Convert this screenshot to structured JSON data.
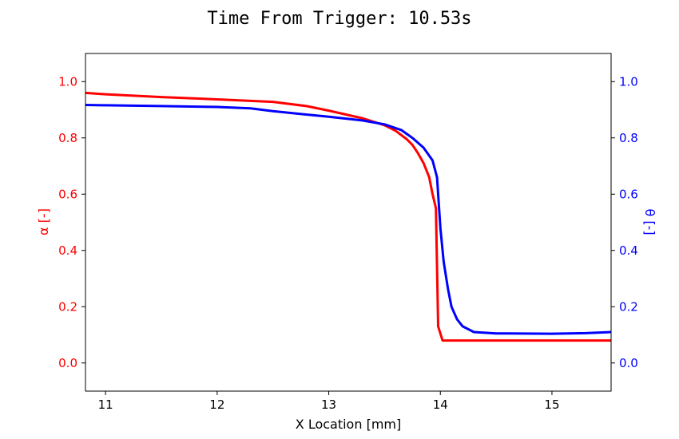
{
  "chart_data": {
    "type": "line",
    "title": "Time From Trigger: 10.53s",
    "xlabel": "X Location [mm]",
    "xlim": [
      10.82,
      15.53
    ],
    "x_ticks": [
      11,
      12,
      13,
      14,
      15
    ],
    "left_axis": {
      "label": "α [-]",
      "color": "#ff0000",
      "ylim": [
        -0.1,
        1.1
      ],
      "ticks": [
        0.0,
        0.2,
        0.4,
        0.6,
        0.8,
        1.0
      ]
    },
    "right_axis": {
      "label": "θ [-]",
      "color": "#0000ff",
      "ylim": [
        -0.1,
        1.1
      ],
      "ticks": [
        0.0,
        0.2,
        0.4,
        0.6,
        0.8,
        1.0
      ]
    },
    "grid": false,
    "series": [
      {
        "axis": "left",
        "color": "#ff0000",
        "x": [
          10.82,
          11.0,
          11.5,
          12.0,
          12.5,
          12.8,
          13.0,
          13.3,
          13.5,
          13.6,
          13.7,
          13.75,
          13.8,
          13.85,
          13.9,
          13.93,
          13.96,
          13.98,
          14.02,
          14.1,
          14.5,
          15.0,
          15.53
        ],
        "y": [
          0.96,
          0.955,
          0.945,
          0.937,
          0.928,
          0.913,
          0.897,
          0.87,
          0.845,
          0.825,
          0.795,
          0.775,
          0.745,
          0.71,
          0.66,
          0.6,
          0.55,
          0.13,
          0.08,
          0.08,
          0.08,
          0.08,
          0.08
        ]
      },
      {
        "axis": "right",
        "color": "#0000ff",
        "x": [
          10.82,
          11.0,
          11.5,
          12.0,
          12.3,
          12.5,
          12.8,
          13.0,
          13.3,
          13.5,
          13.65,
          13.75,
          13.85,
          13.93,
          13.97,
          14.0,
          14.03,
          14.07,
          14.1,
          14.15,
          14.2,
          14.3,
          14.5,
          15.0,
          15.3,
          15.53
        ],
        "y": [
          0.917,
          0.916,
          0.913,
          0.91,
          0.905,
          0.895,
          0.883,
          0.875,
          0.862,
          0.848,
          0.828,
          0.8,
          0.765,
          0.72,
          0.66,
          0.48,
          0.36,
          0.26,
          0.2,
          0.155,
          0.13,
          0.11,
          0.105,
          0.104,
          0.106,
          0.11
        ]
      }
    ]
  }
}
